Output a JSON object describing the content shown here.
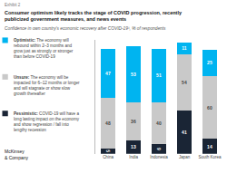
{
  "chart_data": {
    "type": "bar",
    "stacked": true,
    "title": "Consumer optimism likely tracks the stage of COVID progression, recently\npublicized government measures, and news events",
    "subtitle": "Confidence in own country’s economic recovery after COVID-19¹, % of respondents",
    "annotations": [
      "Exhibit 2",
      "McKinsey\n& Company"
    ],
    "categories": [
      "China",
      "India",
      "Indonesia",
      "Japan",
      "South Korea"
    ],
    "series": [
      {
        "name": "Pessimistic: COVID-19 will have a\nlong lasting impact on the economy\nand show regression / fall into\nlengthy recession",
        "color": "#1a2535",
        "values": [
          5,
          13,
          9,
          41,
          14
        ]
      },
      {
        "name": "Unsure: The economy will be\nimpacted for 6–12 months or longer\nand will stagnate or show slow\ngrowth thereafter",
        "color": "#c9c9c9",
        "values": [
          48,
          36,
          40,
          54,
          60
        ]
      },
      {
        "name": "Optimistic: The economy will\nrebound within 2–3 months and\ngrow just as strongly or stronger\nthan before COVID-19",
        "color": "#00b4f0",
        "values": [
          47,
          53,
          51,
          11,
          25
        ]
      }
    ],
    "ylim": [
      0,
      108
    ],
    "grid": false,
    "legend": "left",
    "data_labels": true,
    "tick_labels": "x"
  }
}
